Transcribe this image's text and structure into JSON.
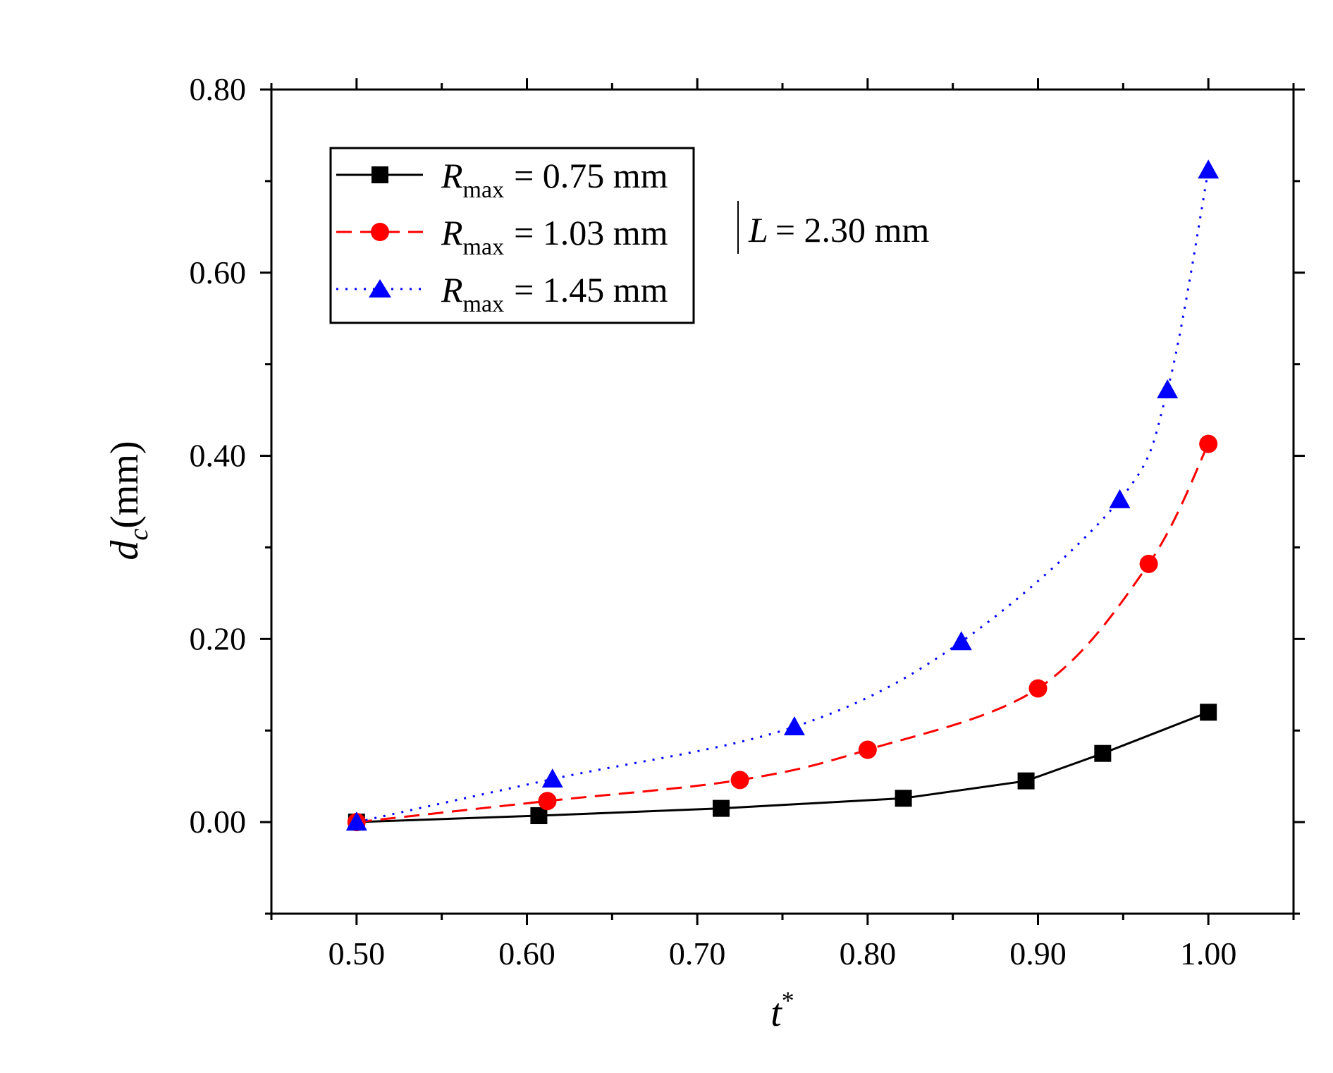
{
  "chart_data": {
    "type": "line",
    "title": "",
    "xlabel": "t",
    "xlabel_superscript": "*",
    "ylabel_symbol": "d",
    "ylabel_subscript": "c",
    "ylabel_unit": "(mm)",
    "xlim": [
      0.45,
      1.05
    ],
    "ylim": [
      -0.1,
      0.8
    ],
    "xticks": [
      "0.50",
      "0.60",
      "0.70",
      "0.80",
      "0.90",
      "1.00"
    ],
    "xtick_values": [
      0.5,
      0.6,
      0.7,
      0.8,
      0.9,
      1.0
    ],
    "yticks": [
      "0.00",
      "0.20",
      "0.40",
      "0.60",
      "0.80"
    ],
    "ytick_values": [
      0.0,
      0.2,
      0.4,
      0.6,
      0.8
    ],
    "legend_position": "top-left",
    "legend_symbol": "R",
    "legend_subscript": "max",
    "series": [
      {
        "name": "R_max = 0.75 mm",
        "value_text": "= 0.75 mm",
        "color": "#000000",
        "marker": "square",
        "line_style": "solid",
        "x": [
          0.5,
          0.607,
          0.714,
          0.821,
          0.893,
          0.938,
          1.0
        ],
        "y": [
          0.0,
          0.007,
          0.015,
          0.026,
          0.045,
          0.075,
          0.12
        ]
      },
      {
        "name": "R_max = 1.03 mm",
        "value_text": "= 1.03 mm",
        "color": "#ff0000",
        "marker": "circle",
        "line_style": "dashed",
        "x": [
          0.5,
          0.612,
          0.725,
          0.8,
          0.9,
          0.965,
          1.0
        ],
        "y": [
          0.0,
          0.023,
          0.046,
          0.079,
          0.146,
          0.282,
          0.413
        ]
      },
      {
        "name": "R_max = 1.45 mm",
        "value_text": "= 1.45 mm",
        "color": "#0000ff",
        "marker": "triangle",
        "line_style": "dotted",
        "x": [
          0.5,
          0.615,
          0.757,
          0.855,
          0.948,
          0.976,
          1.0
        ],
        "y": [
          0.0,
          0.047,
          0.104,
          0.197,
          0.352,
          0.472,
          0.712
        ]
      }
    ],
    "annotation": {
      "symbol": "L",
      "value_text": "= 2.30 mm"
    }
  }
}
